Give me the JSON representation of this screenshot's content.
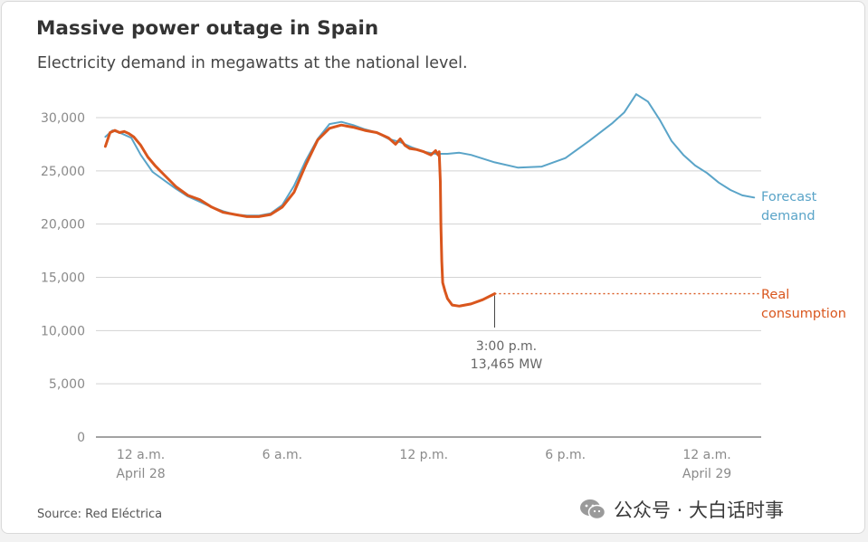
{
  "title": "Massive power outage in Spain",
  "subtitle": "Electricity demand in megawatts at the national level.",
  "source": "Source: Red Eléctrica",
  "watermark": {
    "text": "公众号 · 大白话时事",
    "icon": "wechat-icon"
  },
  "colors": {
    "forecast": "#5aa4c8",
    "real": "#d9561d",
    "grid": "#d3d3d3",
    "axis_text": "#8a8a8a",
    "annotation_text": "#666666"
  },
  "chart_data": {
    "type": "line",
    "title": "Massive power outage in Spain",
    "subtitle": "Electricity demand in megawatts at the national level.",
    "x_unit": "hours since 12 a.m. April 28",
    "ylim": [
      0,
      30000
    ],
    "yticks": [
      0,
      5000,
      10000,
      15000,
      20000,
      25000,
      30000
    ],
    "ytick_labels": [
      "0",
      "5,000",
      "10,000",
      "15,000",
      "20,000",
      "25,000",
      "30,000"
    ],
    "xlim": [
      -1.9,
      26.3
    ],
    "xticks": [
      {
        "x": 0,
        "label": "12 a.m.",
        "sublabel": "April 28"
      },
      {
        "x": 6,
        "label": "6 a.m.",
        "sublabel": ""
      },
      {
        "x": 12,
        "label": "12 p.m.",
        "sublabel": ""
      },
      {
        "x": 18,
        "label": "6 p.m.",
        "sublabel": ""
      },
      {
        "x": 24,
        "label": "12 a.m.",
        "sublabel": "April 29"
      }
    ],
    "grid": true,
    "series": [
      {
        "name": "Forecast demand",
        "label_lines": [
          "Forecast",
          "demand"
        ],
        "x": [
          -1.5,
          -1.2,
          -0.8,
          -0.4,
          0,
          0.5,
          1,
          1.5,
          2,
          2.5,
          3,
          3.5,
          4,
          4.5,
          5,
          5.5,
          6,
          6.5,
          7,
          7.5,
          8,
          8.5,
          9,
          9.5,
          10,
          10.5,
          11,
          11.5,
          12,
          12.5,
          13,
          13.5,
          14,
          15,
          16,
          17,
          18,
          19,
          20,
          20.5,
          21,
          21.5,
          22,
          22.5,
          23,
          23.5,
          24,
          24.5,
          25,
          25.5,
          26
        ],
        "y": [
          28200,
          28800,
          28500,
          28100,
          26500,
          24900,
          24100,
          23300,
          22600,
          22100,
          21600,
          21200,
          20900,
          20800,
          20800,
          21000,
          21800,
          23600,
          26000,
          28000,
          29400,
          29600,
          29300,
          28900,
          28600,
          28000,
          27700,
          27200,
          26800,
          26600,
          26600,
          26700,
          26500,
          25800,
          25300,
          25400,
          26200,
          27800,
          29500,
          30500,
          32200,
          31500,
          29800,
          27800,
          26500,
          25500,
          24800,
          23900,
          23200,
          22700,
          22500
        ]
      },
      {
        "name": "Real consumption",
        "label_lines": [
          "Real",
          "consumption"
        ],
        "x": [
          -1.5,
          -1.3,
          -1.1,
          -0.9,
          -0.7,
          -0.5,
          -0.3,
          0,
          0.3,
          0.6,
          1,
          1.5,
          2,
          2.5,
          3,
          3.5,
          4,
          4.5,
          5,
          5.5,
          6,
          6.5,
          7,
          7.5,
          8,
          8.5,
          9,
          9.5,
          10,
          10.5,
          10.8,
          11,
          11.2,
          11.4,
          11.7,
          12,
          12.3,
          12.5,
          12.6,
          12.65,
          12.7,
          12.72,
          12.76,
          12.8,
          12.9,
          13,
          13.2,
          13.5,
          14,
          14.5,
          15
        ],
        "y": [
          27300,
          28600,
          28800,
          28600,
          28700,
          28500,
          28200,
          27400,
          26300,
          25500,
          24600,
          23500,
          22700,
          22300,
          21600,
          21100,
          20900,
          20700,
          20700,
          20900,
          21600,
          23000,
          25600,
          27900,
          29000,
          29300,
          29100,
          28800,
          28600,
          28100,
          27500,
          28000,
          27400,
          27100,
          27000,
          26800,
          26500,
          26900,
          26500,
          26800,
          24000,
          20000,
          16500,
          14500,
          13700,
          13000,
          12400,
          12300,
          12500,
          12900,
          13465
        ]
      }
    ],
    "annotation": {
      "x": 15,
      "y": 13465,
      "lines": [
        "3:00 p.m.",
        "13,465 MW"
      ]
    }
  }
}
